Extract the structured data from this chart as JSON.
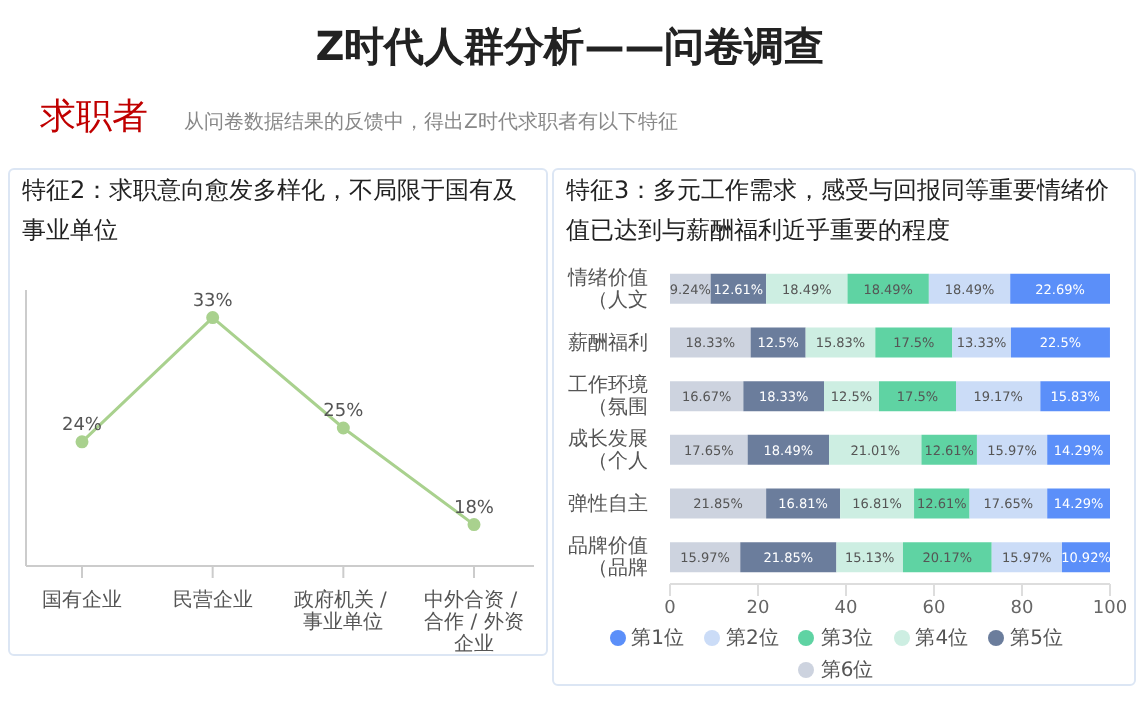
{
  "chart_data": [
    {
      "type": "line",
      "title": "特征2：求职意向愈发多样化，不局限于国有及事业单位",
      "annotations": [
        "Z时代人群分析——问卷调查",
        "求职者",
        "从问卷数据结果的反馈中，得出Z时代求职者有以下特征"
      ],
      "categories": [
        "国有企业",
        "民营企业",
        "政府机关 / 事业单位",
        "中外合资 / 合作 / 外资企业"
      ],
      "series": [
        {
          "color": "#a9d18e",
          "values": [
            24,
            33,
            25,
            18
          ],
          "value_labels": [
            "24%",
            "33%",
            "25%",
            "18%"
          ]
        }
      ],
      "ylim": [
        15,
        35
      ],
      "tick_labels": "x",
      "marker": "circle",
      "grid": false
    },
    {
      "type": "bar",
      "orientation": "horizontal",
      "stacked": true,
      "title": "特征3：多元工作需求，感受与回报同等重要情绪价值已达到与薪酬福利近乎重要的程度",
      "categories": [
        "情绪价值（人文",
        "薪酬福利",
        "工作环境（氛围",
        "成长发展（个人",
        "弹性自主",
        "品牌价值（品牌"
      ],
      "series": [
        {
          "name": "第6位",
          "color": "#cdd3df",
          "values": [
            9.24,
            18.33,
            16.67,
            17.65,
            21.85,
            15.97
          ],
          "value_labels": [
            "9.24%",
            "18.33%",
            "16.67%",
            "17.65%",
            "21.85%",
            "15.97%"
          ]
        },
        {
          "name": "第5位",
          "color": "#6b7d9c",
          "values": [
            12.61,
            12.5,
            18.33,
            18.49,
            16.81,
            21.85
          ],
          "value_labels": [
            "12.61%",
            "12.5%",
            "18.33%",
            "18.49%",
            "16.81%",
            "21.85%"
          ]
        },
        {
          "name": "第4位",
          "color": "#cdeee2",
          "values": [
            18.49,
            15.83,
            12.5,
            21.01,
            16.81,
            15.13
          ],
          "value_labels": [
            "18.49%",
            "15.83%",
            "12.5%",
            "21.01%",
            "16.81%",
            "15.13%"
          ]
        },
        {
          "name": "第3位",
          "color": "#5fd3a3",
          "values": [
            18.49,
            17.5,
            17.5,
            12.61,
            12.61,
            20.17
          ],
          "value_labels": [
            "18.49%",
            "17.5%",
            "17.5%",
            "12.61%",
            "12.61%",
            "20.17%"
          ]
        },
        {
          "name": "第2位",
          "color": "#cbdcf7",
          "values": [
            18.49,
            13.33,
            19.17,
            15.97,
            17.65,
            15.97
          ],
          "value_labels": [
            "18.49%",
            "13.33%",
            "19.17%",
            "15.97%",
            "17.65%",
            "15.97%"
          ]
        },
        {
          "name": "第1位",
          "color": "#5b8ff9",
          "values": [
            22.69,
            22.5,
            15.83,
            14.29,
            14.29,
            10.92
          ],
          "value_labels": [
            "22.69%",
            "22.5%",
            "15.83%",
            "14.29%",
            "14.29%",
            "10.92%"
          ]
        }
      ],
      "xlim": [
        0,
        100
      ],
      "xticks": [
        0,
        20,
        40,
        60,
        80,
        100
      ],
      "grid": false,
      "legend": "bottom"
    }
  ]
}
